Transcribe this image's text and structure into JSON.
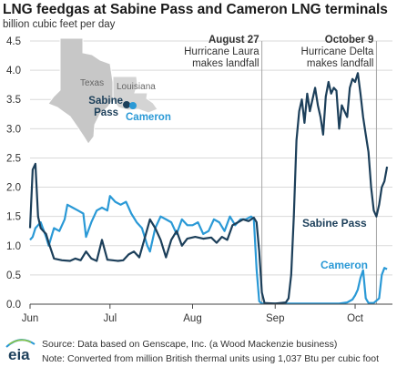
{
  "chart_data": {
    "type": "line",
    "title": "LNG feedgas at Sabine Pass and Cameron LNG terminals",
    "ylabel": "billion cubic feet per day",
    "ylim": [
      0,
      4.5
    ],
    "yticks": [
      "0.0",
      "0.5",
      "1.0",
      "1.5",
      "2.0",
      "2.5",
      "3.0",
      "3.5",
      "4.0",
      "4.5"
    ],
    "xlim": [
      "2020-06-01",
      "2020-10-15"
    ],
    "xticks": [
      {
        "date": "2020-06-01",
        "label": "Jun"
      },
      {
        "date": "2020-07-01",
        "label": "Jul"
      },
      {
        "date": "2020-08-01",
        "label": "Aug"
      },
      {
        "date": "2020-09-01",
        "label": "Sep"
      },
      {
        "date": "2020-10-01",
        "label": "Oct"
      }
    ],
    "annotations": [
      {
        "date": "2020-08-27",
        "lines": [
          "August 27",
          "Hurricane Laura",
          "makes landfall"
        ]
      },
      {
        "date": "2020-10-09",
        "lines": [
          "October 9",
          "Hurricane Delta",
          "makes landfall"
        ]
      }
    ],
    "series": [
      {
        "name": "Sabine Pass",
        "color": "#1c3f5a",
        "points": [
          [
            "2020-06-01",
            1.3
          ],
          [
            "2020-06-02",
            2.3
          ],
          [
            "2020-06-03",
            2.4
          ],
          [
            "2020-06-04",
            1.5
          ],
          [
            "2020-06-05",
            1.3
          ],
          [
            "2020-06-06",
            1.25
          ],
          [
            "2020-06-07",
            1.2
          ],
          [
            "2020-06-08",
            1.05
          ],
          [
            "2020-06-10",
            0.78
          ],
          [
            "2020-06-13",
            0.75
          ],
          [
            "2020-06-16",
            0.74
          ],
          [
            "2020-06-18",
            0.78
          ],
          [
            "2020-06-20",
            0.75
          ],
          [
            "2020-06-22",
            0.9
          ],
          [
            "2020-06-24",
            0.78
          ],
          [
            "2020-06-26",
            0.74
          ],
          [
            "2020-06-28",
            1.1
          ],
          [
            "2020-06-30",
            0.76
          ],
          [
            "2020-07-02",
            0.75
          ],
          [
            "2020-07-04",
            0.74
          ],
          [
            "2020-07-06",
            0.75
          ],
          [
            "2020-07-08",
            0.85
          ],
          [
            "2020-07-10",
            0.9
          ],
          [
            "2020-07-12",
            0.8
          ],
          [
            "2020-07-14",
            1.12
          ],
          [
            "2020-07-16",
            1.45
          ],
          [
            "2020-07-18",
            1.3
          ],
          [
            "2020-07-20",
            1.1
          ],
          [
            "2020-07-22",
            0.8
          ],
          [
            "2020-07-24",
            1.1
          ],
          [
            "2020-07-26",
            1.25
          ],
          [
            "2020-07-28",
            1.0
          ],
          [
            "2020-07-30",
            1.12
          ],
          [
            "2020-08-02",
            1.15
          ],
          [
            "2020-08-05",
            1.12
          ],
          [
            "2020-08-08",
            1.14
          ],
          [
            "2020-08-10",
            1.05
          ],
          [
            "2020-08-12",
            1.15
          ],
          [
            "2020-08-14",
            1.1
          ],
          [
            "2020-08-16",
            1.35
          ],
          [
            "2020-08-18",
            1.4
          ],
          [
            "2020-08-20",
            1.45
          ],
          [
            "2020-08-22",
            1.42
          ],
          [
            "2020-08-24",
            1.48
          ],
          [
            "2020-08-25",
            1.4
          ],
          [
            "2020-08-26",
            0.9
          ],
          [
            "2020-08-27",
            0.2
          ],
          [
            "2020-08-28",
            0.02
          ],
          [
            "2020-09-01",
            0.01
          ],
          [
            "2020-09-03",
            0.02
          ],
          [
            "2020-09-05",
            0.03
          ],
          [
            "2020-09-06",
            0.1
          ],
          [
            "2020-09-07",
            0.5
          ],
          [
            "2020-09-08",
            1.5
          ],
          [
            "2020-09-09",
            2.8
          ],
          [
            "2020-09-10",
            3.3
          ],
          [
            "2020-09-11",
            3.5
          ],
          [
            "2020-09-12",
            3.1
          ],
          [
            "2020-09-13",
            3.6
          ],
          [
            "2020-09-14",
            3.3
          ],
          [
            "2020-09-15",
            3.5
          ],
          [
            "2020-09-16",
            3.7
          ],
          [
            "2020-09-17",
            3.4
          ],
          [
            "2020-09-18",
            3.2
          ],
          [
            "2020-09-19",
            2.9
          ],
          [
            "2020-09-20",
            3.55
          ],
          [
            "2020-09-21",
            3.8
          ],
          [
            "2020-09-22",
            3.6
          ],
          [
            "2020-09-23",
            3.7
          ],
          [
            "2020-09-24",
            3.65
          ],
          [
            "2020-09-25",
            3.0
          ],
          [
            "2020-09-26",
            3.4
          ],
          [
            "2020-09-27",
            3.3
          ],
          [
            "2020-09-28",
            3.2
          ],
          [
            "2020-09-29",
            3.7
          ],
          [
            "2020-09-30",
            3.85
          ],
          [
            "2020-10-01",
            3.8
          ],
          [
            "2020-10-02",
            3.95
          ],
          [
            "2020-10-03",
            3.6
          ],
          [
            "2020-10-04",
            3.2
          ],
          [
            "2020-10-05",
            2.9
          ],
          [
            "2020-10-06",
            2.6
          ],
          [
            "2020-10-07",
            2.0
          ],
          [
            "2020-10-08",
            1.6
          ],
          [
            "2020-10-09",
            1.5
          ],
          [
            "2020-10-10",
            1.7
          ],
          [
            "2020-10-11",
            2.0
          ],
          [
            "2020-10-12",
            2.1
          ],
          [
            "2020-10-13",
            2.35
          ]
        ]
      },
      {
        "name": "Cameron",
        "color": "#2a99d6",
        "points": [
          [
            "2020-06-01",
            1.1
          ],
          [
            "2020-06-02",
            1.15
          ],
          [
            "2020-06-03",
            1.3
          ],
          [
            "2020-06-05",
            1.4
          ],
          [
            "2020-06-07",
            1.15
          ],
          [
            "2020-06-08",
            1.0
          ],
          [
            "2020-06-10",
            1.3
          ],
          [
            "2020-06-12",
            1.25
          ],
          [
            "2020-06-14",
            1.45
          ],
          [
            "2020-06-15",
            1.7
          ],
          [
            "2020-06-17",
            1.65
          ],
          [
            "2020-06-19",
            1.6
          ],
          [
            "2020-06-21",
            1.55
          ],
          [
            "2020-06-22",
            1.15
          ],
          [
            "2020-06-24",
            1.4
          ],
          [
            "2020-06-26",
            1.6
          ],
          [
            "2020-06-28",
            1.65
          ],
          [
            "2020-06-30",
            1.6
          ],
          [
            "2020-07-01",
            1.85
          ],
          [
            "2020-07-03",
            1.75
          ],
          [
            "2020-07-05",
            1.7
          ],
          [
            "2020-07-07",
            1.75
          ],
          [
            "2020-07-09",
            1.55
          ],
          [
            "2020-07-11",
            1.4
          ],
          [
            "2020-07-13",
            1.3
          ],
          [
            "2020-07-15",
            1.0
          ],
          [
            "2020-07-16",
            0.9
          ],
          [
            "2020-07-18",
            1.3
          ],
          [
            "2020-07-20",
            1.5
          ],
          [
            "2020-07-22",
            1.45
          ],
          [
            "2020-07-24",
            1.4
          ],
          [
            "2020-07-26",
            1.2
          ],
          [
            "2020-07-28",
            1.45
          ],
          [
            "2020-07-30",
            1.35
          ],
          [
            "2020-08-01",
            1.35
          ],
          [
            "2020-08-03",
            1.4
          ],
          [
            "2020-08-05",
            1.2
          ],
          [
            "2020-08-07",
            1.25
          ],
          [
            "2020-08-09",
            1.45
          ],
          [
            "2020-08-11",
            1.4
          ],
          [
            "2020-08-13",
            1.25
          ],
          [
            "2020-08-15",
            1.5
          ],
          [
            "2020-08-17",
            1.35
          ],
          [
            "2020-08-19",
            1.45
          ],
          [
            "2020-08-21",
            1.45
          ],
          [
            "2020-08-23",
            1.5
          ],
          [
            "2020-08-24",
            1.45
          ],
          [
            "2020-08-25",
            0.6
          ],
          [
            "2020-08-26",
            0.05
          ],
          [
            "2020-08-27",
            0.01
          ],
          [
            "2020-09-05",
            0.01
          ],
          [
            "2020-09-15",
            0.01
          ],
          [
            "2020-09-25",
            0.01
          ],
          [
            "2020-09-28",
            0.03
          ],
          [
            "2020-09-30",
            0.08
          ],
          [
            "2020-10-01",
            0.15
          ],
          [
            "2020-10-02",
            0.25
          ],
          [
            "2020-10-03",
            0.45
          ],
          [
            "2020-10-04",
            0.58
          ],
          [
            "2020-10-05",
            0.1
          ],
          [
            "2020-10-06",
            0.02
          ],
          [
            "2020-10-08",
            0.02
          ],
          [
            "2020-10-10",
            0.1
          ],
          [
            "2020-10-11",
            0.5
          ],
          [
            "2020-10-12",
            0.62
          ],
          [
            "2020-10-13",
            0.6
          ]
        ]
      }
    ],
    "map": {
      "labels": {
        "texas": "Texas",
        "louisiana": "Louisiana",
        "sabine": [
          "Sabine",
          "Pass"
        ],
        "cameron": "Cameron"
      }
    }
  },
  "source": "Source:  Data based on Genscape, Inc. (a Wood Mackenzie business)",
  "note": "Note: Converted from million British thermal units using 1,037 Btu per cubic foot",
  "logo_text": "eia"
}
